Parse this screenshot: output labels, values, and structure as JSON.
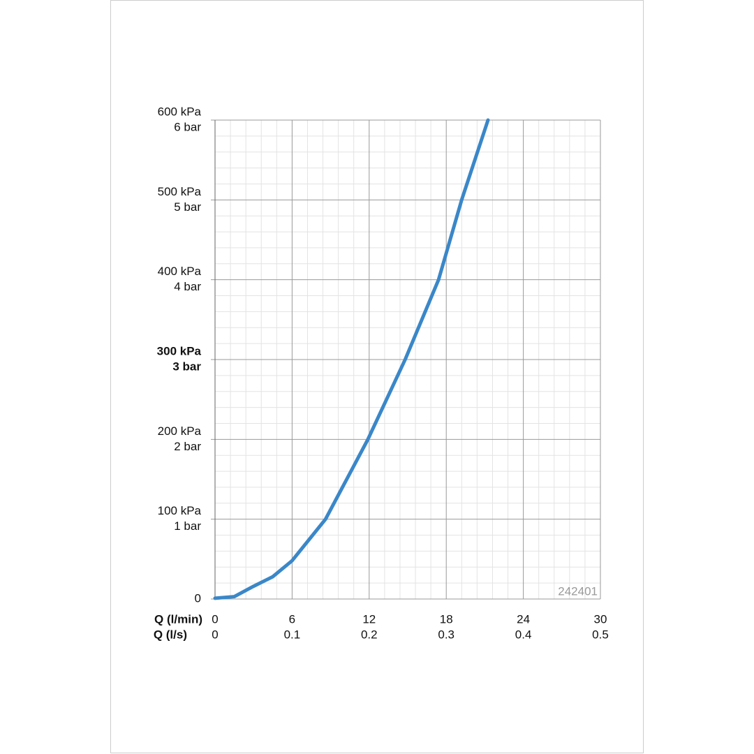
{
  "chart_data": {
    "type": "line",
    "x_labels": [
      "Q (l/min)",
      "Q (l/s)"
    ],
    "code": "242401",
    "series": [
      {
        "color": "#3a87c8",
        "x": [
          0,
          1.5,
          3,
          4.5,
          6,
          8.6,
          11.9,
          14.8,
          17.4,
          19.2,
          21.25
        ],
        "values": [
          1,
          3,
          16,
          28,
          48,
          100,
          200,
          300,
          400,
          500,
          600
        ]
      }
    ],
    "xlim": [
      0,
      30
    ],
    "xticks": [
      0,
      6,
      12,
      18,
      24,
      30
    ],
    "xticks_ls": [
      {
        "value": 0,
        "label": "0"
      },
      {
        "value": 6,
        "label": "0.1"
      },
      {
        "value": 12,
        "label": "0.2"
      },
      {
        "value": 18,
        "label": "0.3"
      },
      {
        "value": 24,
        "label": "0.4"
      },
      {
        "value": 30,
        "label": "0.5"
      }
    ],
    "ylim": [
      0,
      600
    ],
    "yticks": [
      0,
      {
        "value": 100,
        "label": "100 kPa"
      },
      {
        "value": 200,
        "label": "200 kPa"
      },
      {
        "value": 300,
        "label": "300 kPa"
      },
      {
        "value": 400,
        "label": "400 kPa"
      },
      {
        "value": 500,
        "label": "500 kPa"
      },
      {
        "value": 600,
        "label": "600 kPa"
      }
    ],
    "yticks_bar": [
      {
        "value": 100,
        "label": "1 bar"
      },
      {
        "value": 200,
        "label": "2 bar"
      },
      {
        "value": 300,
        "label": "3 bar"
      },
      {
        "value": 400,
        "label": "4 bar"
      },
      {
        "value": 500,
        "label": "5 bar"
      },
      {
        "value": 600,
        "label": "6 bar"
      }
    ],
    "emphasized_ytick": 300,
    "grid": true,
    "minor_divisions": 5
  }
}
